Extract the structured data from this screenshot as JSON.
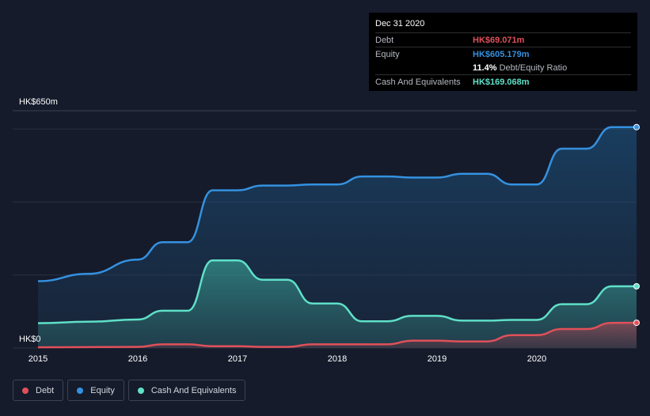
{
  "chart_data": {
    "type": "area",
    "y_unit_prefix": "HK$",
    "y_tick_labels": [
      "HK$0",
      "HK$650m"
    ],
    "ylim": [
      0,
      650
    ],
    "xlim": [
      2015,
      2021
    ],
    "x_tick_labels": [
      "2015",
      "2016",
      "2017",
      "2018",
      "2019",
      "2020"
    ],
    "x_ticks": [
      2015,
      2016,
      2017,
      2018,
      2019,
      2020
    ],
    "grid": true,
    "legend_position": "bottom-left",
    "series": [
      {
        "name": "Debt",
        "color": "#e0505a",
        "points": [
          [
            2015.0,
            2
          ],
          [
            2016.0,
            3
          ],
          [
            2016.25,
            10
          ],
          [
            2016.5,
            10
          ],
          [
            2016.75,
            5
          ],
          [
            2017.0,
            5
          ],
          [
            2017.25,
            3
          ],
          [
            2017.5,
            3
          ],
          [
            2017.75,
            10
          ],
          [
            2018.0,
            10
          ],
          [
            2018.5,
            10
          ],
          [
            2018.75,
            20
          ],
          [
            2019.0,
            20
          ],
          [
            2019.25,
            18
          ],
          [
            2019.5,
            18
          ],
          [
            2019.75,
            35
          ],
          [
            2020.0,
            35
          ],
          [
            2020.25,
            52
          ],
          [
            2020.5,
            52
          ],
          [
            2020.75,
            69
          ],
          [
            2021.0,
            69.071
          ]
        ]
      },
      {
        "name": "Equity",
        "color": "#3591e0",
        "points": [
          [
            2015.0,
            183
          ],
          [
            2015.5,
            203
          ],
          [
            2016.0,
            242
          ],
          [
            2016.25,
            290
          ],
          [
            2016.5,
            290
          ],
          [
            2016.75,
            432
          ],
          [
            2017.0,
            432
          ],
          [
            2017.25,
            445
          ],
          [
            2017.5,
            445
          ],
          [
            2017.75,
            448
          ],
          [
            2018.0,
            448
          ],
          [
            2018.25,
            470
          ],
          [
            2018.5,
            470
          ],
          [
            2018.75,
            467
          ],
          [
            2019.0,
            467
          ],
          [
            2019.25,
            477
          ],
          [
            2019.5,
            477
          ],
          [
            2019.75,
            448
          ],
          [
            2020.0,
            448
          ],
          [
            2020.25,
            546
          ],
          [
            2020.5,
            546
          ],
          [
            2020.75,
            605.179
          ],
          [
            2021.0,
            605.179
          ]
        ]
      },
      {
        "name": "Cash And Equivalents",
        "color": "#5fe0c8",
        "points": [
          [
            2015.0,
            68
          ],
          [
            2015.5,
            72
          ],
          [
            2016.0,
            78
          ],
          [
            2016.25,
            102
          ],
          [
            2016.5,
            102
          ],
          [
            2016.75,
            240
          ],
          [
            2017.0,
            240
          ],
          [
            2017.25,
            187
          ],
          [
            2017.5,
            187
          ],
          [
            2017.75,
            122
          ],
          [
            2018.0,
            122
          ],
          [
            2018.25,
            73
          ],
          [
            2018.5,
            73
          ],
          [
            2018.75,
            88
          ],
          [
            2019.0,
            88
          ],
          [
            2019.25,
            75
          ],
          [
            2019.5,
            75
          ],
          [
            2019.75,
            77
          ],
          [
            2020.0,
            77
          ],
          [
            2020.25,
            120
          ],
          [
            2020.5,
            120
          ],
          [
            2020.75,
            169.068
          ],
          [
            2021.0,
            169.068
          ]
        ]
      }
    ]
  },
  "tooltip": {
    "date": "Dec 31 2020",
    "debt_label": "Debt",
    "debt_value": "HK$69.071m",
    "equity_label": "Equity",
    "equity_value": "HK$605.179m",
    "ratio_value": "11.4%",
    "ratio_label": "Debt/Equity Ratio",
    "cash_label": "Cash And Equivalents",
    "cash_value": "HK$169.068m",
    "colors": {
      "debt": "#e0505a",
      "equity": "#3591e0",
      "cash": "#5fe0c8",
      "ratio": "#ffffff"
    }
  },
  "legend": [
    {
      "label": "Debt",
      "color": "#e0505a"
    },
    {
      "label": "Equity",
      "color": "#3591e0"
    },
    {
      "label": "Cash And Equivalents",
      "color": "#5fe0c8"
    }
  ]
}
